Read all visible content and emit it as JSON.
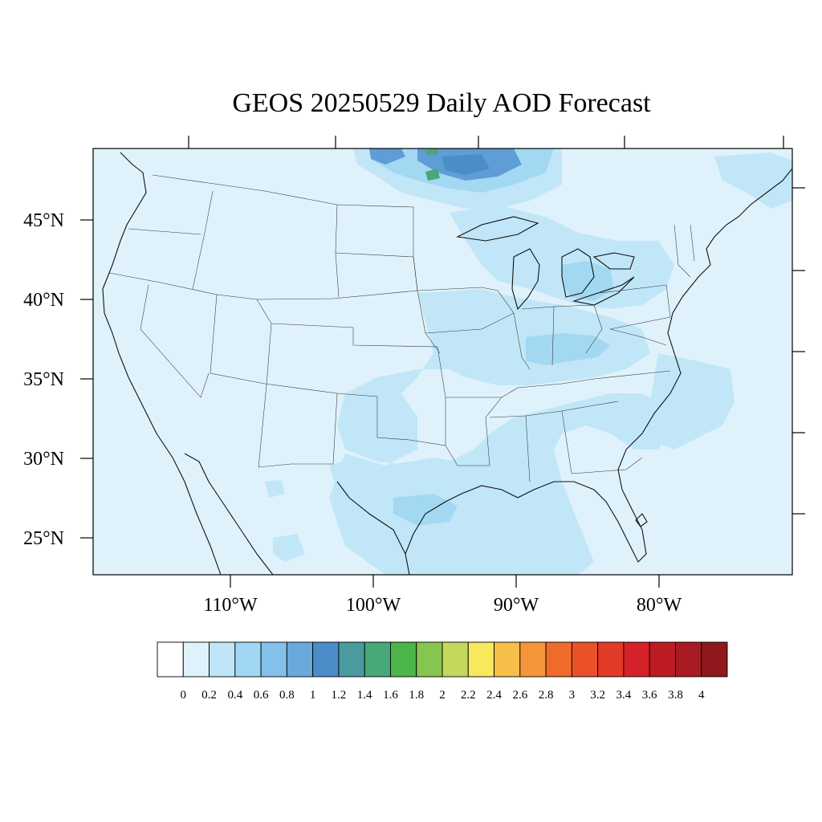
{
  "title": "GEOS 20250529 Daily AOD Forecast",
  "lat_labels": [
    "45°N",
    "40°N",
    "35°N",
    "30°N",
    "25°N"
  ],
  "lon_labels": [
    "110°W",
    "100°W",
    "90°W",
    "80°W"
  ],
  "colorbar": {
    "labels": [
      "0",
      "0.2",
      "0.4",
      "0.6",
      "0.8",
      "1",
      "1.2",
      "1.4",
      "1.6",
      "1.8",
      "2",
      "2.2",
      "2.4",
      "2.6",
      "2.8",
      "3",
      "3.2",
      "3.4",
      "3.6",
      "3.8",
      "4"
    ],
    "colors": [
      "#ffffff",
      "#dff2fb",
      "#bee6f8",
      "#a0d8f3",
      "#82c1eb",
      "#69a9dc",
      "#4b8dc9",
      "#4a9b9e",
      "#48a877",
      "#4bb54a",
      "#86c54f",
      "#c4d95b",
      "#f8e85e",
      "#f7be4a",
      "#f6963b",
      "#f06a2c",
      "#ea5129",
      "#e13a27",
      "#d42228",
      "#bd1c24",
      "#a91b22",
      "#8e181c"
    ]
  },
  "colors": {
    "background_aod": "#dff2fb"
  }
}
